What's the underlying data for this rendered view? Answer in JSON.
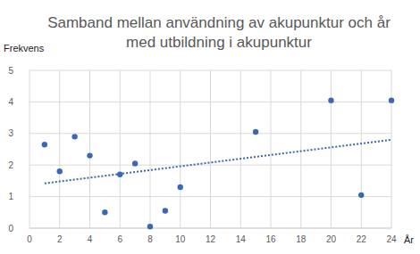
{
  "chart_data": {
    "type": "scatter",
    "title": "Samband mellan användning av akupunktur och år med utbildning i akupunktur",
    "x_label": "År",
    "y_label": "Frekvens",
    "xlim": [
      0,
      24
    ],
    "ylim": [
      0,
      5
    ],
    "xticks": [
      0,
      2,
      4,
      6,
      8,
      10,
      12,
      14,
      16,
      18,
      20,
      22,
      24
    ],
    "yticks": [
      0,
      1,
      2,
      3,
      4,
      5
    ],
    "grid": true,
    "series": [
      {
        "type": "scatter",
        "marker": "circle",
        "color": "#3a68b4",
        "x": [
          1,
          2,
          3,
          4,
          5,
          6,
          7,
          8,
          9,
          10,
          15,
          20,
          22,
          24
        ],
        "values": [
          2.65,
          1.8,
          2.9,
          2.3,
          0.5,
          1.7,
          2.05,
          0.05,
          0.55,
          1.3,
          3.05,
          4.05,
          1.05,
          4.05
        ]
      },
      {
        "type": "line",
        "line_style": "dotted",
        "color": "#3a68b4",
        "x": [
          1,
          24
        ],
        "values": [
          1.42,
          2.8
        ]
      }
    ]
  }
}
